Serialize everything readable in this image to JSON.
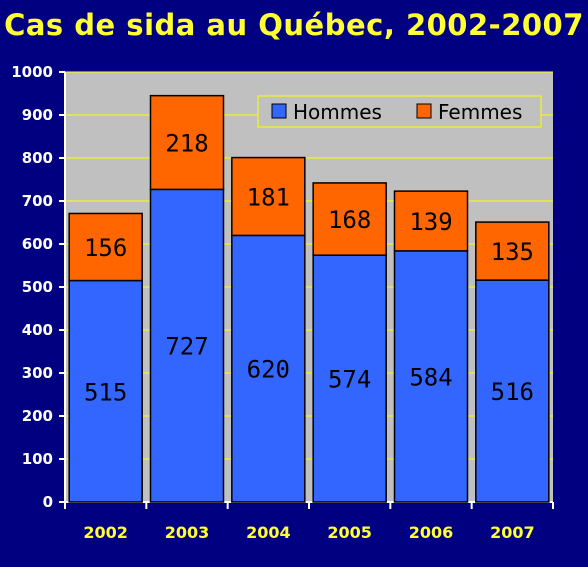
{
  "chart_data": {
    "type": "bar",
    "stacked": true,
    "title": "Cas de sida au Québec, 2002-2007",
    "categories": [
      "2002",
      "2003",
      "2004",
      "2005",
      "2006",
      "2007"
    ],
    "series": [
      {
        "name": "Hommes",
        "values": [
          515,
          727,
          620,
          574,
          584,
          516
        ],
        "color": "#3366ff"
      },
      {
        "name": "Femmes",
        "values": [
          156,
          218,
          181,
          168,
          139,
          135
        ],
        "color": "#ff6600"
      }
    ],
    "ylim": [
      0,
      1000
    ],
    "yticks": [
      0,
      100,
      200,
      300,
      400,
      500,
      600,
      700,
      800,
      900,
      1000
    ],
    "grid": true,
    "legend_position": "top-right",
    "colors": {
      "background": "#000080",
      "plot_area": "#c0c0c0",
      "gridline": "#ffff00",
      "title": "#ffff33",
      "x_tick": "#ffff33",
      "y_tick": "#ffffff",
      "legend_bg": "#c0c0c0",
      "legend_border": "#ffff00"
    }
  }
}
